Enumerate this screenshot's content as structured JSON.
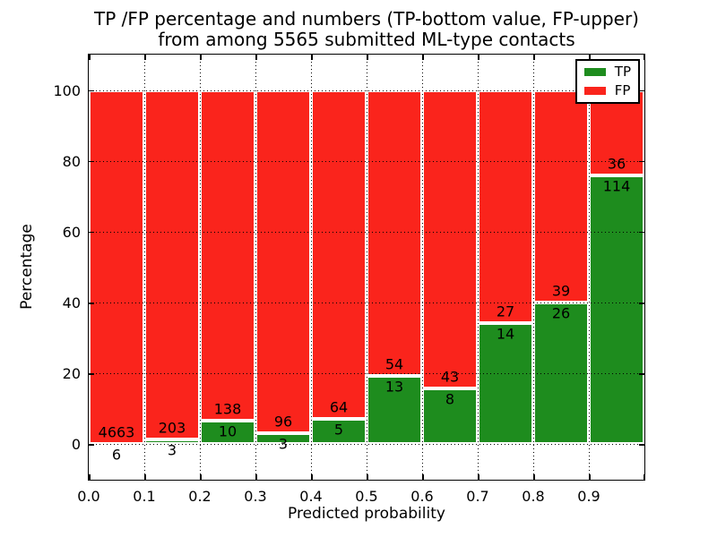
{
  "chart_data": {
    "type": "bar",
    "stacked": true,
    "units": "percent",
    "title_line1": "TP /FP percentage and numbers (TP-bottom value, FP-upper)",
    "title_line2": "from among 5565 submitted ML-type contacts",
    "xlabel": "Predicted probability",
    "ylabel": "Percentage",
    "total_submitted": 5565,
    "xlim": [
      0.0,
      1.0
    ],
    "ylim": [
      -10,
      110
    ],
    "x_tick_labels": [
      "0.0",
      "0.1",
      "0.2",
      "0.3",
      "0.4",
      "0.5",
      "0.6",
      "0.7",
      "0.8",
      "0.9"
    ],
    "y_tick_values": [
      0,
      20,
      40,
      60,
      80,
      100
    ],
    "grid_style": "dotted",
    "legend_position": "upper-right",
    "colors": {
      "tp": "#1e8c1e",
      "fp": "#fa241c",
      "bar_edge": "#ffffff",
      "grid": "#000000",
      "text": "#000000"
    },
    "legend_items": [
      {
        "label": "TP",
        "color_key": "tp"
      },
      {
        "label": "FP",
        "color_key": "fp"
      }
    ],
    "bars": [
      {
        "x_start": 0.0,
        "x_end": 0.1,
        "tp_count": 6,
        "fp_count": 4663,
        "tp_pct": 0.13,
        "fp_pct": 99.87
      },
      {
        "x_start": 0.1,
        "x_end": 0.2,
        "tp_count": 3,
        "fp_count": 203,
        "tp_pct": 1.46,
        "fp_pct": 98.54
      },
      {
        "x_start": 0.2,
        "x_end": 0.3,
        "tp_count": 10,
        "fp_count": 138,
        "tp_pct": 6.76,
        "fp_pct": 93.24
      },
      {
        "x_start": 0.3,
        "x_end": 0.4,
        "tp_count": 3,
        "fp_count": 96,
        "tp_pct": 3.03,
        "fp_pct": 96.97
      },
      {
        "x_start": 0.4,
        "x_end": 0.5,
        "tp_count": 5,
        "fp_count": 64,
        "tp_pct": 7.25,
        "fp_pct": 92.75
      },
      {
        "x_start": 0.5,
        "x_end": 0.6,
        "tp_count": 13,
        "fp_count": 54,
        "tp_pct": 19.4,
        "fp_pct": 80.6
      },
      {
        "x_start": 0.6,
        "x_end": 0.7,
        "tp_count": 8,
        "fp_count": 43,
        "tp_pct": 15.69,
        "fp_pct": 84.31
      },
      {
        "x_start": 0.7,
        "x_end": 0.8,
        "tp_count": 14,
        "fp_count": 27,
        "tp_pct": 34.15,
        "fp_pct": 65.85
      },
      {
        "x_start": 0.8,
        "x_end": 0.9,
        "tp_count": 26,
        "fp_count": 39,
        "tp_pct": 40.0,
        "fp_pct": 60.0
      },
      {
        "x_start": 0.9,
        "x_end": 1.0,
        "tp_count": 114,
        "fp_count": 36,
        "tp_pct": 76.0,
        "fp_pct": 24.0
      }
    ]
  }
}
